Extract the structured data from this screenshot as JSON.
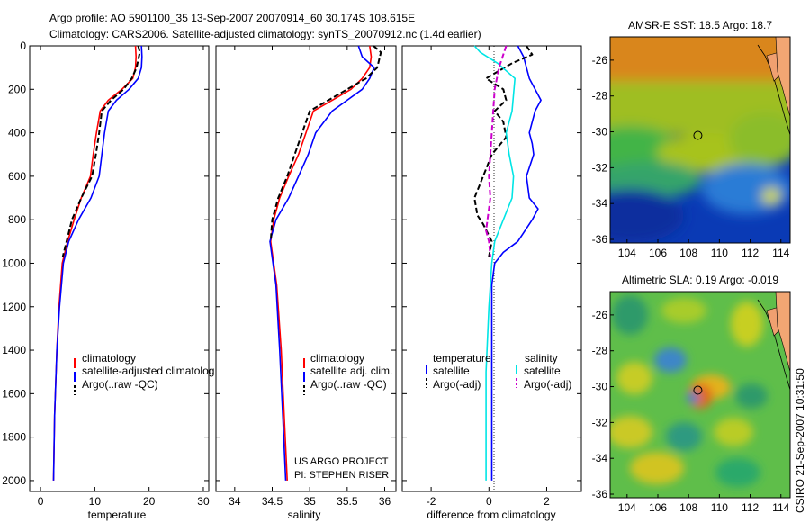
{
  "figure": {
    "title_line1": "Argo profile: AO 5901100_35 13-Sep-2007 20070914_60 30.174S 108.615E",
    "title_line2": "Climatology: CARS2006. Satellite-adjusted climatology: synTS_20070912.nc (1.4d earlier)",
    "side_text": "CSIRO 21-Sep-2007 10:31:50",
    "credit_line1": "US ARGO PROJECT",
    "credit_line2": "PI: STEPHEN RISER",
    "colors": {
      "clim": "#ff0000",
      "sat": "#0000ff",
      "argo": "#000000",
      "sat_diff_sal": "#00e5e5",
      "argo_diff_sal": "#cc00cc"
    }
  },
  "chart_data": [
    {
      "id": "temperature",
      "type": "line",
      "xlabel": "temperature",
      "xlim": [
        -2,
        31
      ],
      "ylim": [
        0,
        2050
      ],
      "xticks": [
        0,
        10,
        20,
        30
      ],
      "yticks": [
        0,
        200,
        400,
        600,
        800,
        1000,
        1200,
        1400,
        1600,
        1800,
        2000
      ],
      "y_reversed": true,
      "legend": [
        "climatology",
        "satellite-adjusted climatolog",
        "Argo(..raw -QC)"
      ],
      "series": [
        {
          "name": "climatology",
          "color": "#ff0000",
          "dash": "solid",
          "x": [
            17.5,
            17.6,
            17.5,
            17.0,
            15.0,
            12.5,
            11.0,
            10.3,
            9.7,
            9.2,
            7.5,
            6.2,
            5.0,
            4.0,
            3.4,
            3.0,
            2.6,
            2.4
          ],
          "y": [
            0,
            50,
            100,
            150,
            200,
            250,
            300,
            400,
            500,
            600,
            700,
            800,
            900,
            1000,
            1200,
            1400,
            1700,
            2000
          ]
        },
        {
          "name": "satellite-adjusted climatolog",
          "color": "#0000ff",
          "dash": "solid",
          "x": [
            18.6,
            18.7,
            18.6,
            18.0,
            16.3,
            14.0,
            12.5,
            11.8,
            11.3,
            10.8,
            9.3,
            7.0,
            5.2,
            4.2,
            3.5,
            3.0,
            2.6,
            2.4
          ],
          "y": [
            0,
            50,
            100,
            150,
            200,
            250,
            300,
            400,
            500,
            600,
            700,
            800,
            900,
            1000,
            1200,
            1400,
            1700,
            2000
          ]
        },
        {
          "name": "Argo(..raw -QC)",
          "color": "#000000",
          "dash": "dashed",
          "x": [
            18.0,
            18.3,
            17.7,
            16.8,
            15.3,
            13.0,
            11.3,
            10.8,
            10.2,
            9.5,
            7.5,
            5.8,
            4.8,
            4.1
          ],
          "y": [
            0,
            30,
            100,
            150,
            200,
            250,
            300,
            400,
            500,
            600,
            700,
            800,
            900,
            970
          ]
        }
      ]
    },
    {
      "id": "salinity",
      "type": "line",
      "xlabel": "salinity",
      "xlim": [
        33.75,
        36.15
      ],
      "ylim": [
        0,
        2050
      ],
      "xticks": [
        34,
        34.5,
        35,
        35.5,
        36
      ],
      "y_reversed": true,
      "legend": [
        "climatology",
        "satellite adj. clim.",
        "Argo(..raw -QC)"
      ],
      "series": [
        {
          "name": "climatology",
          "color": "#ff0000",
          "dash": "solid",
          "x": [
            35.8,
            35.82,
            35.8,
            35.7,
            35.55,
            35.3,
            35.05,
            34.95,
            34.85,
            34.72,
            34.6,
            34.52,
            34.48,
            34.56,
            34.62,
            34.66,
            34.7
          ],
          "y": [
            0,
            50,
            100,
            150,
            200,
            250,
            300,
            400,
            500,
            600,
            700,
            800,
            900,
            1100,
            1400,
            1700,
            2000
          ]
        },
        {
          "name": "satellite adj. clim.",
          "color": "#0000ff",
          "dash": "solid",
          "x": [
            35.65,
            35.7,
            35.86,
            35.8,
            35.7,
            35.5,
            35.3,
            35.08,
            34.98,
            34.85,
            34.72,
            34.55,
            34.47,
            34.55,
            34.6,
            34.64,
            34.68
          ],
          "y": [
            0,
            50,
            100,
            150,
            200,
            250,
            300,
            400,
            500,
            600,
            700,
            800,
            900,
            1100,
            1400,
            1700,
            2000
          ]
        },
        {
          "name": "Argo(..raw -QC)",
          "color": "#000000",
          "dash": "dashed",
          "x": [
            35.85,
            35.95,
            35.9,
            35.75,
            35.5,
            35.25,
            35.0,
            34.9,
            34.8,
            34.7,
            34.58,
            34.5,
            34.48
          ],
          "y": [
            0,
            30,
            100,
            150,
            200,
            250,
            300,
            400,
            500,
            600,
            700,
            800,
            900
          ]
        }
      ]
    },
    {
      "id": "difference",
      "type": "line",
      "xlabel": "difference from climatology",
      "xlim": [
        -3,
        3.2
      ],
      "ylim": [
        0,
        2050
      ],
      "xticks": [
        -2,
        0,
        2
      ],
      "y_reversed": true,
      "legend_headers": [
        "temperature",
        "salinity"
      ],
      "legend": [
        "satellite",
        "Argo(-adj)",
        "satellite",
        "Argo(-adj)"
      ],
      "series": [
        {
          "name": "temperature satellite",
          "color": "#0000ff",
          "dash": "solid",
          "x": [
            1.0,
            1.2,
            1.4,
            1.8,
            1.6,
            1.4,
            1.5,
            1.55,
            1.3,
            1.4,
            1.7,
            1.5,
            1.0,
            0.5,
            0.2,
            0.1,
            0.1,
            0.1
          ],
          "y": [
            0,
            50,
            150,
            250,
            300,
            400,
            450,
            500,
            600,
            700,
            750,
            800,
            900,
            950,
            1000,
            1100,
            1500,
            2000
          ]
        },
        {
          "name": "temperature Argo(-adj)",
          "color": "#000000",
          "dash": "dashed",
          "x": [
            1.3,
            1.5,
            0.8,
            -0.1,
            0.5,
            0.6,
            0.2,
            0.5,
            0.6,
            0.1,
            -0.2,
            -0.5,
            -0.4,
            -0.2,
            0.1,
            0.0
          ],
          "y": [
            0,
            40,
            80,
            150,
            200,
            250,
            300,
            350,
            420,
            500,
            600,
            700,
            780,
            820,
            900,
            970
          ]
        },
        {
          "name": "salinity satellite",
          "color": "#00e5e5",
          "dash": "solid",
          "x": [
            -0.5,
            -0.3,
            0.3,
            0.9,
            0.8,
            0.6,
            0.7,
            0.85,
            0.8,
            0.5,
            0.2,
            0.1,
            0.0,
            -0.1,
            -0.1
          ],
          "y": [
            0,
            30,
            80,
            150,
            300,
            400,
            500,
            600,
            700,
            800,
            900,
            1000,
            1200,
            1500,
            2000
          ]
        },
        {
          "name": "salinity Argo(-adj)",
          "color": "#cc00cc",
          "dash": "dashed",
          "x": [
            0.6,
            0.5,
            0.35,
            0.2,
            0.1,
            0.0,
            0.05,
            -0.05,
            -0.1,
            0.0,
            0.05
          ],
          "y": [
            0,
            40,
            100,
            200,
            400,
            600,
            700,
            800,
            850,
            900,
            970
          ]
        }
      ]
    },
    {
      "id": "sst_map",
      "type": "heatmap",
      "title": "AMSR-E SST: 18.5 Argo: 18.7",
      "xlim": [
        102.9,
        114.6
      ],
      "ylim": [
        -36.2,
        -24.7
      ],
      "xticks": [
        104,
        106,
        108,
        110,
        112,
        114
      ],
      "yticks": [
        -26,
        -28,
        -30,
        -32,
        -34,
        -36
      ],
      "marker": {
        "lon": 108.6,
        "lat": -30.2
      }
    },
    {
      "id": "sla_map",
      "type": "heatmap",
      "title": "Altimetric SLA: 0.19 Argo: -0.019",
      "xlim": [
        102.9,
        114.6
      ],
      "ylim": [
        -36.2,
        -24.7
      ],
      "xticks": [
        104,
        106,
        108,
        110,
        112,
        114
      ],
      "yticks": [
        -26,
        -28,
        -30,
        -32,
        -34,
        -36
      ],
      "marker": {
        "lon": 108.6,
        "lat": -30.2
      }
    }
  ]
}
